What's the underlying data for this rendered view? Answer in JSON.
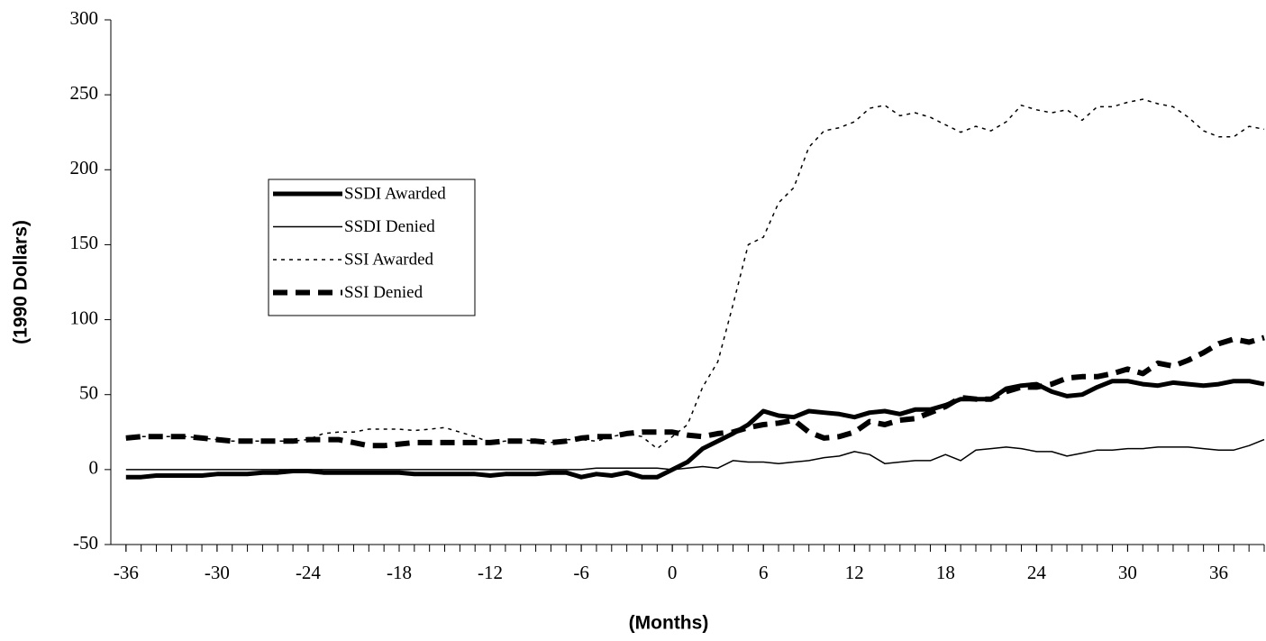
{
  "chart_data": {
    "type": "line",
    "xlabel": "(Months)",
    "ylabel": "(1990 Dollars)",
    "x": [
      -36,
      -35,
      -34,
      -33,
      -32,
      -31,
      -30,
      -29,
      -28,
      -27,
      -26,
      -25,
      -24,
      -23,
      -22,
      -21,
      -20,
      -19,
      -18,
      -17,
      -16,
      -15,
      -14,
      -13,
      -12,
      -11,
      -10,
      -9,
      -8,
      -7,
      -6,
      -5,
      -4,
      -3,
      -2,
      -1,
      0,
      1,
      2,
      3,
      4,
      5,
      6,
      7,
      8,
      9,
      10,
      11,
      12,
      13,
      14,
      15,
      16,
      17,
      18,
      19,
      20,
      21,
      22,
      23,
      24,
      25,
      26,
      27,
      28,
      29,
      30,
      31,
      32,
      33,
      34,
      35,
      36,
      37,
      38,
      39
    ],
    "xlim": [
      -37,
      39
    ],
    "xticks": [
      -36,
      -30,
      -24,
      -18,
      -12,
      -6,
      0,
      6,
      12,
      18,
      24,
      30,
      36
    ],
    "ylim": [
      -50,
      300
    ],
    "yticks": [
      -50,
      0,
      50,
      100,
      150,
      200,
      250,
      300
    ],
    "legend": "left",
    "series": [
      {
        "name": "SSDI Awarded",
        "color": "#000000",
        "width": 5,
        "dash": "none",
        "values": [
          -5,
          -5,
          -4,
          -4,
          -4,
          -4,
          -3,
          -3,
          -3,
          -2,
          -2,
          -1,
          -1,
          -2,
          -2,
          -2,
          -2,
          -2,
          -2,
          -3,
          -3,
          -3,
          -3,
          -3,
          -4,
          -3,
          -3,
          -3,
          -2,
          -2,
          -5,
          -3,
          -4,
          -2,
          -5,
          -5,
          0,
          5,
          14,
          19,
          24,
          30,
          39,
          36,
          35,
          39,
          38,
          37,
          35,
          38,
          39,
          37,
          40,
          40,
          43,
          47,
          47,
          47,
          54,
          56,
          57,
          52,
          49,
          50,
          55,
          59,
          59,
          57,
          56,
          58,
          57,
          56,
          57,
          59,
          59,
          57
        ]
      },
      {
        "name": "SSDI Denied",
        "color": "#000000",
        "width": 1.5,
        "dash": "none",
        "values": [
          0,
          0,
          0,
          0,
          0,
          0,
          0,
          0,
          0,
          0,
          0,
          0,
          0,
          0,
          0,
          0,
          0,
          0,
          0,
          0,
          0,
          0,
          0,
          0,
          0,
          0,
          0,
          0,
          0,
          0,
          0,
          1,
          1,
          1,
          1,
          1,
          0,
          1,
          2,
          1,
          6,
          5,
          5,
          4,
          5,
          6,
          8,
          9,
          12,
          10,
          4,
          5,
          6,
          6,
          10,
          6,
          13,
          14,
          15,
          14,
          12,
          12,
          9,
          11,
          13,
          13,
          14,
          14,
          15,
          15,
          15,
          14,
          13,
          13,
          16,
          20
        ]
      },
      {
        "name": "SSI Awarded",
        "color": "#000000",
        "width": 1.5,
        "dash": "4 5",
        "values": [
          21,
          22,
          22,
          22,
          22,
          21,
          20,
          19,
          19,
          19,
          19,
          19,
          20,
          24,
          25,
          25,
          27,
          27,
          27,
          26,
          27,
          28,
          25,
          22,
          18,
          19,
          20,
          19,
          18,
          20,
          20,
          19,
          22,
          24,
          22,
          14,
          22,
          30,
          55,
          72,
          110,
          150,
          155,
          178,
          188,
          215,
          226,
          228,
          232,
          241,
          243,
          236,
          238,
          235,
          230,
          225,
          229,
          226,
          232,
          243,
          240,
          238,
          240,
          233,
          242,
          242,
          245,
          247,
          244,
          242,
          235,
          226,
          222,
          222,
          229,
          227
        ]
      },
      {
        "name": "SSI Denied",
        "color": "#000000",
        "width": 6,
        "dash": "16 9",
        "values": [
          21,
          22,
          22,
          22,
          22,
          21,
          20,
          19,
          19,
          19,
          19,
          19,
          20,
          20,
          20,
          18,
          16,
          16,
          17,
          18,
          18,
          18,
          18,
          18,
          18,
          19,
          19,
          19,
          18,
          19,
          21,
          22,
          22,
          24,
          25,
          25,
          25,
          23,
          22,
          24,
          25,
          28,
          30,
          31,
          33,
          25,
          21,
          22,
          25,
          32,
          30,
          33,
          34,
          38,
          42,
          48,
          47,
          47,
          52,
          55,
          55,
          57,
          61,
          62,
          62,
          64,
          67,
          64,
          71,
          69,
          73,
          78,
          84,
          87,
          85,
          88
        ]
      }
    ]
  }
}
